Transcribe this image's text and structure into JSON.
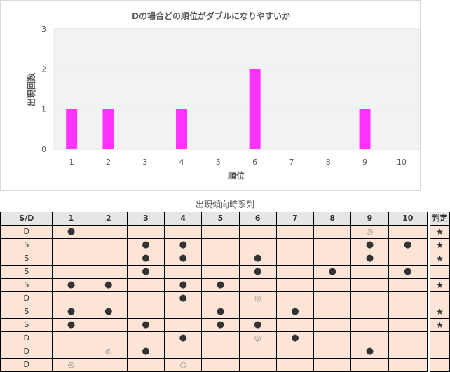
{
  "chart_data": {
    "type": "bar",
    "title": "Dの場合どの順位がダブルになりやすいか",
    "xlabel": "順位",
    "ylabel": "出現回数",
    "categories": [
      "1",
      "2",
      "3",
      "4",
      "5",
      "6",
      "7",
      "8",
      "9",
      "10"
    ],
    "values": [
      1,
      1,
      0,
      1,
      0,
      2,
      0,
      0,
      1,
      0
    ],
    "ylim": [
      0,
      3
    ],
    "yticks": [
      "0",
      "1",
      "2",
      "3"
    ],
    "grid": true,
    "bar_color": "#ff33ff",
    "plot_bg": "#f2f2f2"
  },
  "table": {
    "caption": "出現傾向時系列",
    "headers": [
      "S/D",
      "1",
      "2",
      "3",
      "4",
      "5",
      "6",
      "7",
      "8",
      "9",
      "10"
    ],
    "judge_header": "判定",
    "rows": [
      {
        "type": "D",
        "cells": [
          "●",
          "",
          "",
          "",
          "",
          "",
          "",
          "",
          "◎",
          ""
        ],
        "judge": "★"
      },
      {
        "type": "S",
        "cells": [
          "",
          "",
          "●",
          "●",
          "",
          "",
          "",
          "",
          "●",
          "●"
        ],
        "judge": "★"
      },
      {
        "type": "S",
        "cells": [
          "",
          "",
          "●",
          "●",
          "",
          "●",
          "",
          "",
          "●",
          ""
        ],
        "judge": "★"
      },
      {
        "type": "S",
        "cells": [
          "",
          "",
          "●",
          "",
          "",
          "●",
          "",
          "●",
          "",
          "●"
        ],
        "judge": ""
      },
      {
        "type": "S",
        "cells": [
          "●",
          "●",
          "",
          "●",
          "●",
          "",
          "",
          "",
          "",
          ""
        ],
        "judge": "★"
      },
      {
        "type": "D",
        "cells": [
          "",
          "",
          "",
          "●",
          "",
          "◎",
          "",
          "",
          "",
          ""
        ],
        "judge": ""
      },
      {
        "type": "S",
        "cells": [
          "●",
          "●",
          "",
          "",
          "●",
          "",
          "●",
          "",
          "",
          ""
        ],
        "judge": "★"
      },
      {
        "type": "S",
        "cells": [
          "●",
          "",
          "●",
          "",
          "●",
          "●",
          "",
          "",
          "",
          ""
        ],
        "judge": "★"
      },
      {
        "type": "D",
        "cells": [
          "",
          "",
          "",
          "●",
          "",
          "◎",
          "●",
          "",
          "",
          ""
        ],
        "judge": ""
      },
      {
        "type": "D",
        "cells": [
          "",
          "◎",
          "●",
          "",
          "",
          "",
          "",
          "",
          "●",
          ""
        ],
        "judge": ""
      },
      {
        "type": "D",
        "cells": [
          "◎",
          "",
          "",
          "◎",
          "",
          "",
          "",
          "",
          "",
          ""
        ],
        "judge": ""
      }
    ]
  }
}
